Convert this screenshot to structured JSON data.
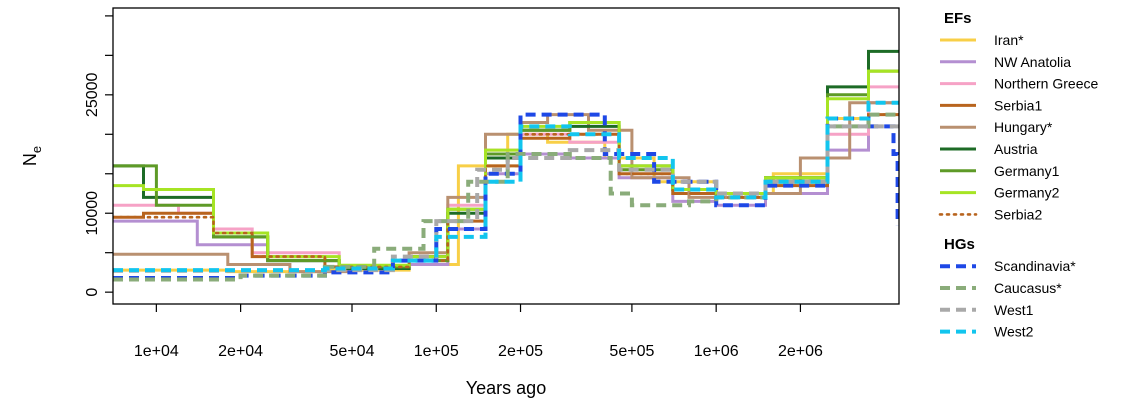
{
  "chart_data": {
    "type": "line",
    "xlabel": "Years ago",
    "ylabel": "N",
    "ylabel_subscript": "e",
    "x_scale": "log",
    "xlim": [
      7000,
      4500000
    ],
    "ylim": [
      -1500,
      36000
    ],
    "x_ticks": [
      {
        "value": 10000,
        "label": "1e+04"
      },
      {
        "value": 20000,
        "label": "2e+04"
      },
      {
        "value": 50000,
        "label": "5e+04"
      },
      {
        "value": 100000,
        "label": "1e+05"
      },
      {
        "value": 200000,
        "label": "2e+05"
      },
      {
        "value": 500000,
        "label": "5e+05"
      },
      {
        "value": 1000000,
        "label": "1e+06"
      },
      {
        "value": 2000000,
        "label": "2e+06"
      }
    ],
    "y_ticks": [
      {
        "value": 0,
        "label": "0"
      },
      {
        "value": 5000,
        "label": ""
      },
      {
        "value": 10000,
        "label": "10000"
      },
      {
        "value": 15000,
        "label": ""
      },
      {
        "value": 20000,
        "label": ""
      },
      {
        "value": 25000,
        "label": "25000"
      },
      {
        "value": 30000,
        "label": ""
      },
      {
        "value": 35000,
        "label": ""
      }
    ],
    "legend_position": "right",
    "legend_groups": [
      {
        "title": "EFs",
        "entries": [
          "Iran*",
          "NW Anatolia",
          "Northern Greece",
          "Serbia1",
          "Hungary*",
          "Austria",
          "Germany1",
          "Germany2",
          "Serbia2"
        ]
      },
      {
        "title": "HGs",
        "entries": [
          "Scandinavia*",
          "Caucasus*",
          "West1",
          "West2"
        ]
      }
    ],
    "series": [
      {
        "name": "Iran*",
        "color": "#F8CF47",
        "style": "solid",
        "points": [
          [
            7000,
            2800
          ],
          [
            18000,
            2600
          ],
          [
            40000,
            2800
          ],
          [
            80000,
            3500
          ],
          [
            120000,
            16000
          ],
          [
            180000,
            20000
          ],
          [
            250000,
            19000
          ],
          [
            400000,
            17000
          ],
          [
            600000,
            14000
          ],
          [
            1000000,
            12500
          ],
          [
            1600000,
            15000
          ],
          [
            2500000,
            22000
          ],
          [
            3500000,
            28000
          ],
          [
            4500000,
            28000
          ]
        ]
      },
      {
        "name": "NW Anatolia",
        "color": "#B48FD1",
        "style": "solid",
        "points": [
          [
            7000,
            9000
          ],
          [
            10000,
            9000
          ],
          [
            14000,
            6000
          ],
          [
            25000,
            4000
          ],
          [
            45000,
            3000
          ],
          [
            80000,
            3500
          ],
          [
            110000,
            8000
          ],
          [
            150000,
            15000
          ],
          [
            200000,
            17500
          ],
          [
            300000,
            17000
          ],
          [
            450000,
            14500
          ],
          [
            700000,
            11500
          ],
          [
            1000000,
            11000
          ],
          [
            1500000,
            12500
          ],
          [
            2500000,
            18000
          ],
          [
            3500000,
            24000
          ],
          [
            4500000,
            24000
          ]
        ]
      },
      {
        "name": "Northern Greece",
        "color": "#F6A2C6",
        "style": "solid",
        "points": [
          [
            7000,
            11000
          ],
          [
            12000,
            10000
          ],
          [
            16000,
            8000
          ],
          [
            22000,
            5000
          ],
          [
            45000,
            3200
          ],
          [
            80000,
            4000
          ],
          [
            110000,
            11000
          ],
          [
            150000,
            18000
          ],
          [
            200000,
            20000
          ],
          [
            300000,
            19000
          ],
          [
            450000,
            15500
          ],
          [
            700000,
            13000
          ],
          [
            1000000,
            12500
          ],
          [
            1500000,
            14000
          ],
          [
            2500000,
            20000
          ],
          [
            3500000,
            26000
          ],
          [
            4500000,
            26000
          ]
        ]
      },
      {
        "name": "Serbia1",
        "color": "#B8641E",
        "style": "solid",
        "points": [
          [
            7000,
            9500
          ],
          [
            9000,
            10000
          ],
          [
            16000,
            7500
          ],
          [
            22000,
            4500
          ],
          [
            40000,
            3200
          ],
          [
            80000,
            4000
          ],
          [
            110000,
            9000
          ],
          [
            150000,
            16000
          ],
          [
            200000,
            19500
          ],
          [
            300000,
            20000
          ],
          [
            450000,
            15000
          ],
          [
            700000,
            12500
          ],
          [
            1000000,
            12000
          ],
          [
            1500000,
            13500
          ],
          [
            2500000,
            21000
          ],
          [
            3500000,
            22500
          ],
          [
            4500000,
            22500
          ]
        ]
      },
      {
        "name": "Hungary*",
        "color": "#B99070",
        "style": "solid",
        "points": [
          [
            7000,
            4800
          ],
          [
            12000,
            4800
          ],
          [
            18000,
            3500
          ],
          [
            30000,
            2600
          ],
          [
            50000,
            3000
          ],
          [
            80000,
            5000
          ],
          [
            110000,
            12000
          ],
          [
            150000,
            20000
          ],
          [
            200000,
            21500
          ],
          [
            250000,
            22500
          ],
          [
            350000,
            20500
          ],
          [
            500000,
            14500
          ],
          [
            800000,
            12000
          ],
          [
            1200000,
            12500
          ],
          [
            2000000,
            17000
          ],
          [
            3000000,
            24000
          ],
          [
            4500000,
            24000
          ]
        ]
      },
      {
        "name": "Austria",
        "color": "#1D6B26",
        "style": "solid",
        "points": [
          [
            7000,
            16000
          ],
          [
            9000,
            12000
          ],
          [
            16000,
            7000
          ],
          [
            25000,
            4000
          ],
          [
            45000,
            3000
          ],
          [
            80000,
            4500
          ],
          [
            110000,
            10000
          ],
          [
            150000,
            17000
          ],
          [
            200000,
            20500
          ],
          [
            300000,
            21000
          ],
          [
            450000,
            16000
          ],
          [
            700000,
            13000
          ],
          [
            1000000,
            12500
          ],
          [
            1500000,
            14500
          ],
          [
            2500000,
            26000
          ],
          [
            3500000,
            30500
          ],
          [
            4500000,
            30500
          ]
        ]
      },
      {
        "name": "Germany1",
        "color": "#5E9A27",
        "style": "solid",
        "points": [
          [
            7000,
            16000
          ],
          [
            10000,
            11000
          ],
          [
            16000,
            7000
          ],
          [
            25000,
            4000
          ],
          [
            45000,
            3200
          ],
          [
            80000,
            4000
          ],
          [
            110000,
            10500
          ],
          [
            150000,
            17500
          ],
          [
            200000,
            20500
          ],
          [
            300000,
            21500
          ],
          [
            450000,
            15500
          ],
          [
            700000,
            13000
          ],
          [
            1000000,
            12500
          ],
          [
            1500000,
            14500
          ],
          [
            2500000,
            25000
          ],
          [
            3500000,
            28000
          ],
          [
            4500000,
            28000
          ]
        ]
      },
      {
        "name": "Germany2",
        "color": "#A6E424",
        "style": "solid",
        "points": [
          [
            7000,
            13500
          ],
          [
            9000,
            13000
          ],
          [
            16000,
            7500
          ],
          [
            25000,
            4500
          ],
          [
            45000,
            3400
          ],
          [
            80000,
            4500
          ],
          [
            110000,
            10500
          ],
          [
            150000,
            18000
          ],
          [
            200000,
            21000
          ],
          [
            300000,
            21500
          ],
          [
            450000,
            16000
          ],
          [
            700000,
            13000
          ],
          [
            1000000,
            12500
          ],
          [
            1500000,
            14500
          ],
          [
            2500000,
            24500
          ],
          [
            3500000,
            28000
          ],
          [
            4500000,
            28000
          ]
        ]
      },
      {
        "name": "Serbia2",
        "color": "#B8641E",
        "style": "dotted",
        "points": [
          [
            7000,
            9500
          ],
          [
            10000,
            9500
          ],
          [
            16000,
            7500
          ],
          [
            22000,
            4500
          ],
          [
            40000,
            3200
          ],
          [
            80000,
            4000
          ],
          [
            110000,
            9000
          ],
          [
            150000,
            16000
          ],
          [
            200000,
            20000
          ],
          [
            300000,
            20000
          ],
          [
            450000,
            15000
          ],
          [
            700000,
            12500
          ],
          [
            1000000,
            12000
          ],
          [
            1500000,
            13500
          ],
          [
            2500000,
            21000
          ],
          [
            3500000,
            22500
          ],
          [
            4500000,
            22500
          ]
        ]
      },
      {
        "name": "Scandinavia*",
        "color": "#1E48E6",
        "style": "dashed",
        "points": [
          [
            7000,
            1800
          ],
          [
            12000,
            1800
          ],
          [
            20000,
            2100
          ],
          [
            40000,
            2500
          ],
          [
            70000,
            4000
          ],
          [
            100000,
            8000
          ],
          [
            150000,
            15000
          ],
          [
            200000,
            22500
          ],
          [
            300000,
            22500
          ],
          [
            400000,
            17500
          ],
          [
            600000,
            14000
          ],
          [
            1000000,
            11000
          ],
          [
            1500000,
            13500
          ],
          [
            2500000,
            22000
          ],
          [
            3500000,
            21000
          ],
          [
            4300000,
            17500
          ],
          [
            4450000,
            8500
          ]
        ]
      },
      {
        "name": "Caucasus*",
        "color": "#8AAC7A",
        "style": "dashed",
        "points": [
          [
            7000,
            1600
          ],
          [
            10000,
            1600
          ],
          [
            20000,
            2100
          ],
          [
            40000,
            3200
          ],
          [
            60000,
            5500
          ],
          [
            90000,
            9000
          ],
          [
            130000,
            14000
          ],
          [
            180000,
            17500
          ],
          [
            300000,
            17000
          ],
          [
            420000,
            12500
          ],
          [
            500000,
            11000
          ],
          [
            800000,
            11500
          ],
          [
            1000000,
            12000
          ],
          [
            1500000,
            14000
          ],
          [
            2500000,
            21000
          ],
          [
            3500000,
            22500
          ],
          [
            4500000,
            22500
          ]
        ]
      },
      {
        "name": "West1",
        "color": "#A9A9A9",
        "style": "dashed",
        "points": [
          [
            7000,
            2700
          ],
          [
            12000,
            2700
          ],
          [
            20000,
            2700
          ],
          [
            40000,
            2800
          ],
          [
            70000,
            4500
          ],
          [
            100000,
            9000
          ],
          [
            140000,
            15500
          ],
          [
            180000,
            17000
          ],
          [
            300000,
            18000
          ],
          [
            450000,
            15500
          ],
          [
            700000,
            14000
          ],
          [
            1000000,
            12500
          ],
          [
            1500000,
            14000
          ],
          [
            2500000,
            21000
          ],
          [
            3500000,
            21000
          ],
          [
            4500000,
            21000
          ]
        ]
      },
      {
        "name": "West2",
        "color": "#12C5EE",
        "style": "dashed",
        "points": [
          [
            7000,
            2800
          ],
          [
            12000,
            2800
          ],
          [
            20000,
            2800
          ],
          [
            40000,
            3000
          ],
          [
            70000,
            4000
          ],
          [
            100000,
            7000
          ],
          [
            150000,
            14000
          ],
          [
            200000,
            21000
          ],
          [
            300000,
            20000
          ],
          [
            450000,
            17000
          ],
          [
            700000,
            13000
          ],
          [
            1000000,
            12000
          ],
          [
            1500000,
            14000
          ],
          [
            2500000,
            22000
          ],
          [
            3500000,
            24000
          ],
          [
            4500000,
            24000
          ]
        ]
      }
    ]
  }
}
